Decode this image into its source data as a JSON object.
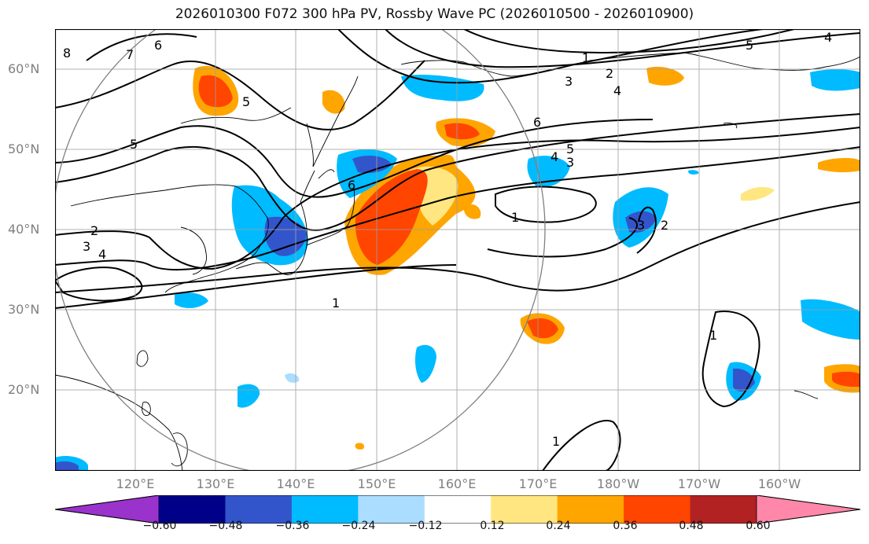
{
  "title": "2026010300 F072 300 hPa PV, Rossby Wave PC (2026010500 - 2026010900)",
  "lat_labels": [
    "60°N",
    "50°N",
    "40°N",
    "30°N",
    "20°N"
  ],
  "lon_labels": [
    "120°E",
    "130°E",
    "140°E",
    "150°E",
    "160°E",
    "170°E",
    "180°W",
    "170°W",
    "160°W"
  ],
  "colorbar": {
    "ticks": [
      "−0.60",
      "−0.48",
      "−0.36",
      "−0.24",
      "−0.12",
      "0.12",
      "0.24",
      "0.36",
      "0.48",
      "0.60"
    ],
    "colors": [
      "#9933cc",
      "#000088",
      "#3355cc",
      "#00bbff",
      "#aaddff",
      "#ffffff",
      "#ffe680",
      "#ffa500",
      "#ff4500",
      "#b22222",
      "#ff88aa"
    ]
  },
  "contour_labels": [
    "1",
    "2",
    "3",
    "4",
    "5",
    "6",
    "7",
    "8"
  ],
  "colors": {
    "grid": "#a0a0a0",
    "coast": "#000000",
    "circle": "#808080"
  }
}
